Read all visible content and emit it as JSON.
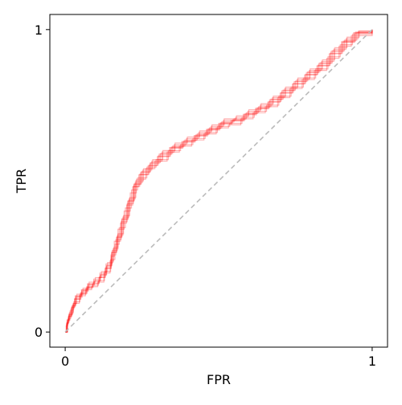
{
  "chart_data": {
    "type": "line",
    "title": "",
    "xlabel": "FPR",
    "ylabel": "TPR",
    "xlim": [
      -0.05,
      1.05
    ],
    "ylim": [
      -0.05,
      1.05
    ],
    "x_ticks": [
      {
        "value": 0,
        "label": "0"
      },
      {
        "value": 1,
        "label": "1"
      }
    ],
    "y_ticks": [
      {
        "value": 0,
        "label": "0"
      },
      {
        "value": 1,
        "label": "1"
      }
    ],
    "grid": false,
    "legend": "none",
    "series_color": "#ff0000",
    "series_opacity": 0.3,
    "reference_line": {
      "points": [
        [
          0,
          0
        ],
        [
          1,
          1
        ]
      ],
      "color": "#bbbbbb",
      "style": "dashed"
    },
    "series": [
      {
        "points": [
          [
            0,
            0
          ],
          [
            0.005,
            0.03
          ],
          [
            0.01,
            0.05
          ],
          [
            0.02,
            0.08
          ],
          [
            0.03,
            0.11
          ],
          [
            0.05,
            0.13
          ],
          [
            0.07,
            0.15
          ],
          [
            0.09,
            0.16
          ],
          [
            0.11,
            0.18
          ],
          [
            0.13,
            0.21
          ],
          [
            0.15,
            0.25
          ],
          [
            0.16,
            0.3
          ],
          [
            0.18,
            0.36
          ],
          [
            0.2,
            0.42
          ],
          [
            0.22,
            0.48
          ],
          [
            0.24,
            0.52
          ],
          [
            0.27,
            0.55
          ],
          [
            0.3,
            0.58
          ],
          [
            0.34,
            0.61
          ],
          [
            0.38,
            0.63
          ],
          [
            0.42,
            0.65
          ],
          [
            0.46,
            0.67
          ],
          [
            0.5,
            0.69
          ],
          [
            0.54,
            0.7
          ],
          [
            0.58,
            0.72
          ],
          [
            0.62,
            0.74
          ],
          [
            0.66,
            0.76
          ],
          [
            0.7,
            0.79
          ],
          [
            0.74,
            0.82
          ],
          [
            0.78,
            0.85
          ],
          [
            0.82,
            0.88
          ],
          [
            0.86,
            0.92
          ],
          [
            0.9,
            0.96
          ],
          [
            0.94,
            0.99
          ],
          [
            1,
            1
          ]
        ]
      },
      {
        "points": [
          [
            0,
            0
          ],
          [
            0.007,
            0.035
          ],
          [
            0.013,
            0.06
          ],
          [
            0.025,
            0.09
          ],
          [
            0.035,
            0.115
          ],
          [
            0.055,
            0.135
          ],
          [
            0.075,
            0.155
          ],
          [
            0.095,
            0.17
          ],
          [
            0.115,
            0.19
          ],
          [
            0.135,
            0.22
          ],
          [
            0.152,
            0.265
          ],
          [
            0.168,
            0.315
          ],
          [
            0.185,
            0.375
          ],
          [
            0.205,
            0.435
          ],
          [
            0.225,
            0.49
          ],
          [
            0.248,
            0.53
          ],
          [
            0.278,
            0.56
          ],
          [
            0.31,
            0.59
          ],
          [
            0.35,
            0.615
          ],
          [
            0.39,
            0.635
          ],
          [
            0.43,
            0.655
          ],
          [
            0.47,
            0.675
          ],
          [
            0.51,
            0.695
          ],
          [
            0.55,
            0.705
          ],
          [
            0.59,
            0.725
          ],
          [
            0.63,
            0.745
          ],
          [
            0.67,
            0.77
          ],
          [
            0.71,
            0.8
          ],
          [
            0.75,
            0.83
          ],
          [
            0.79,
            0.86
          ],
          [
            0.83,
            0.89
          ],
          [
            0.87,
            0.93
          ],
          [
            0.91,
            0.965
          ],
          [
            0.95,
            0.99
          ],
          [
            1,
            1
          ]
        ]
      },
      {
        "points": [
          [
            0,
            0
          ],
          [
            0.004,
            0.025
          ],
          [
            0.009,
            0.045
          ],
          [
            0.018,
            0.075
          ],
          [
            0.028,
            0.1
          ],
          [
            0.048,
            0.125
          ],
          [
            0.068,
            0.145
          ],
          [
            0.088,
            0.155
          ],
          [
            0.108,
            0.17
          ],
          [
            0.128,
            0.2
          ],
          [
            0.148,
            0.24
          ],
          [
            0.162,
            0.29
          ],
          [
            0.176,
            0.345
          ],
          [
            0.196,
            0.41
          ],
          [
            0.216,
            0.47
          ],
          [
            0.236,
            0.51
          ],
          [
            0.266,
            0.545
          ],
          [
            0.296,
            0.57
          ],
          [
            0.336,
            0.6
          ],
          [
            0.376,
            0.62
          ],
          [
            0.416,
            0.64
          ],
          [
            0.456,
            0.66
          ],
          [
            0.496,
            0.68
          ],
          [
            0.536,
            0.69
          ],
          [
            0.576,
            0.71
          ],
          [
            0.616,
            0.73
          ],
          [
            0.656,
            0.75
          ],
          [
            0.696,
            0.78
          ],
          [
            0.736,
            0.81
          ],
          [
            0.776,
            0.84
          ],
          [
            0.816,
            0.87
          ],
          [
            0.856,
            0.91
          ],
          [
            0.896,
            0.95
          ],
          [
            0.936,
            0.985
          ],
          [
            1,
            1
          ]
        ]
      },
      {
        "points": [
          [
            0,
            0
          ],
          [
            0.006,
            0.04
          ],
          [
            0.012,
            0.055
          ],
          [
            0.022,
            0.085
          ],
          [
            0.033,
            0.12
          ],
          [
            0.053,
            0.14
          ],
          [
            0.073,
            0.16
          ],
          [
            0.093,
            0.175
          ],
          [
            0.113,
            0.195
          ],
          [
            0.133,
            0.225
          ],
          [
            0.153,
            0.27
          ],
          [
            0.17,
            0.32
          ],
          [
            0.188,
            0.38
          ],
          [
            0.208,
            0.44
          ],
          [
            0.228,
            0.495
          ],
          [
            0.252,
            0.535
          ],
          [
            0.282,
            0.565
          ],
          [
            0.315,
            0.595
          ],
          [
            0.355,
            0.62
          ],
          [
            0.395,
            0.64
          ],
          [
            0.435,
            0.66
          ],
          [
            0.475,
            0.68
          ],
          [
            0.515,
            0.7
          ],
          [
            0.555,
            0.71
          ],
          [
            0.595,
            0.73
          ],
          [
            0.635,
            0.75
          ],
          [
            0.675,
            0.775
          ],
          [
            0.715,
            0.805
          ],
          [
            0.755,
            0.835
          ],
          [
            0.795,
            0.865
          ],
          [
            0.835,
            0.895
          ],
          [
            0.875,
            0.935
          ],
          [
            0.915,
            0.97
          ],
          [
            0.955,
            0.995
          ],
          [
            1,
            1
          ]
        ]
      },
      {
        "points": [
          [
            0,
            0
          ],
          [
            0.003,
            0.02
          ],
          [
            0.008,
            0.04
          ],
          [
            0.016,
            0.07
          ],
          [
            0.026,
            0.095
          ],
          [
            0.046,
            0.12
          ],
          [
            0.066,
            0.14
          ],
          [
            0.086,
            0.15
          ],
          [
            0.106,
            0.165
          ],
          [
            0.126,
            0.195
          ],
          [
            0.146,
            0.235
          ],
          [
            0.158,
            0.28
          ],
          [
            0.172,
            0.34
          ],
          [
            0.192,
            0.4
          ],
          [
            0.212,
            0.46
          ],
          [
            0.232,
            0.505
          ],
          [
            0.262,
            0.54
          ],
          [
            0.292,
            0.565
          ],
          [
            0.332,
            0.595
          ],
          [
            0.372,
            0.615
          ],
          [
            0.412,
            0.635
          ],
          [
            0.452,
            0.655
          ],
          [
            0.492,
            0.675
          ],
          [
            0.532,
            0.685
          ],
          [
            0.572,
            0.705
          ],
          [
            0.612,
            0.725
          ],
          [
            0.652,
            0.745
          ],
          [
            0.692,
            0.775
          ],
          [
            0.732,
            0.805
          ],
          [
            0.772,
            0.835
          ],
          [
            0.812,
            0.865
          ],
          [
            0.852,
            0.905
          ],
          [
            0.892,
            0.945
          ],
          [
            0.932,
            0.98
          ],
          [
            1,
            1
          ]
        ]
      },
      {
        "points": [
          [
            0,
            0
          ],
          [
            0.008,
            0.04
          ],
          [
            0.014,
            0.065
          ],
          [
            0.027,
            0.095
          ],
          [
            0.038,
            0.125
          ],
          [
            0.058,
            0.145
          ],
          [
            0.078,
            0.165
          ],
          [
            0.098,
            0.18
          ],
          [
            0.118,
            0.2
          ],
          [
            0.138,
            0.23
          ],
          [
            0.156,
            0.275
          ],
          [
            0.172,
            0.325
          ],
          [
            0.19,
            0.385
          ],
          [
            0.21,
            0.445
          ],
          [
            0.23,
            0.5
          ],
          [
            0.255,
            0.54
          ],
          [
            0.285,
            0.57
          ],
          [
            0.318,
            0.6
          ],
          [
            0.358,
            0.625
          ],
          [
            0.398,
            0.645
          ],
          [
            0.438,
            0.665
          ],
          [
            0.478,
            0.685
          ],
          [
            0.518,
            0.705
          ],
          [
            0.558,
            0.715
          ],
          [
            0.598,
            0.735
          ],
          [
            0.638,
            0.755
          ],
          [
            0.678,
            0.78
          ],
          [
            0.718,
            0.81
          ],
          [
            0.758,
            0.84
          ],
          [
            0.798,
            0.87
          ],
          [
            0.838,
            0.9
          ],
          [
            0.878,
            0.94
          ],
          [
            0.918,
            0.975
          ],
          [
            0.958,
            0.995
          ],
          [
            1,
            1
          ]
        ]
      },
      {
        "points": [
          [
            0,
            0
          ],
          [
            0.005,
            0.028
          ],
          [
            0.011,
            0.052
          ],
          [
            0.021,
            0.082
          ],
          [
            0.031,
            0.108
          ],
          [
            0.051,
            0.128
          ],
          [
            0.071,
            0.148
          ],
          [
            0.091,
            0.162
          ],
          [
            0.111,
            0.182
          ],
          [
            0.131,
            0.212
          ],
          [
            0.149,
            0.255
          ],
          [
            0.165,
            0.305
          ],
          [
            0.182,
            0.365
          ],
          [
            0.202,
            0.425
          ],
          [
            0.222,
            0.482
          ],
          [
            0.243,
            0.522
          ],
          [
            0.273,
            0.552
          ],
          [
            0.303,
            0.582
          ],
          [
            0.343,
            0.608
          ],
          [
            0.383,
            0.628
          ],
          [
            0.423,
            0.648
          ],
          [
            0.463,
            0.668
          ],
          [
            0.503,
            0.688
          ],
          [
            0.543,
            0.698
          ],
          [
            0.583,
            0.718
          ],
          [
            0.623,
            0.738
          ],
          [
            0.663,
            0.762
          ],
          [
            0.703,
            0.792
          ],
          [
            0.743,
            0.822
          ],
          [
            0.783,
            0.852
          ],
          [
            0.823,
            0.882
          ],
          [
            0.863,
            0.922
          ],
          [
            0.903,
            0.958
          ],
          [
            0.943,
            0.988
          ],
          [
            1,
            1
          ]
        ]
      },
      {
        "points": [
          [
            0,
            0
          ],
          [
            0.006,
            0.032
          ],
          [
            0.012,
            0.058
          ],
          [
            0.023,
            0.088
          ],
          [
            0.034,
            0.118
          ],
          [
            0.054,
            0.138
          ],
          [
            0.074,
            0.158
          ],
          [
            0.094,
            0.168
          ],
          [
            0.114,
            0.188
          ],
          [
            0.134,
            0.218
          ],
          [
            0.151,
            0.262
          ],
          [
            0.167,
            0.312
          ],
          [
            0.184,
            0.372
          ],
          [
            0.204,
            0.432
          ],
          [
            0.224,
            0.488
          ],
          [
            0.246,
            0.528
          ],
          [
            0.276,
            0.558
          ],
          [
            0.306,
            0.588
          ],
          [
            0.346,
            0.612
          ],
          [
            0.386,
            0.632
          ],
          [
            0.426,
            0.652
          ],
          [
            0.466,
            0.672
          ],
          [
            0.506,
            0.692
          ],
          [
            0.546,
            0.702
          ],
          [
            0.586,
            0.722
          ],
          [
            0.626,
            0.742
          ],
          [
            0.666,
            0.768
          ],
          [
            0.706,
            0.798
          ],
          [
            0.746,
            0.828
          ],
          [
            0.786,
            0.858
          ],
          [
            0.826,
            0.888
          ],
          [
            0.866,
            0.928
          ],
          [
            0.906,
            0.962
          ],
          [
            0.946,
            0.992
          ],
          [
            1,
            1
          ]
        ]
      }
    ]
  }
}
